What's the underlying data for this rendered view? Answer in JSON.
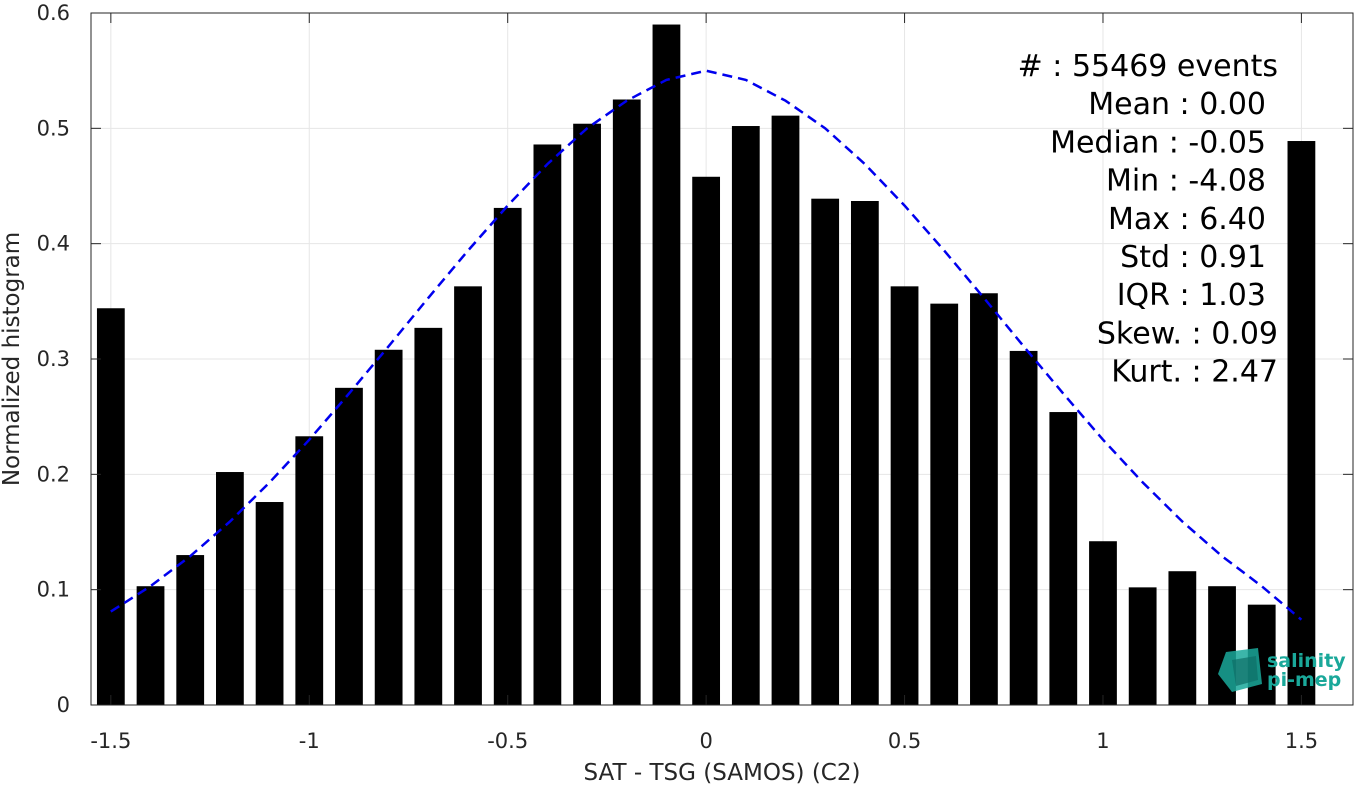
{
  "chart_data": {
    "type": "bar",
    "xlabel": "SAT - TSG (SAMOS) (C2)",
    "ylabel": "Normalized histogram",
    "xlim": [
      -1.55,
      1.63
    ],
    "ylim": [
      0,
      0.6
    ],
    "grid": true,
    "x_ticks": [
      -1.5,
      -1,
      -0.5,
      0,
      0.5,
      1,
      1.5
    ],
    "x_tick_labels": [
      "-1.5",
      "-1",
      "-0.5",
      "0",
      "0.5",
      "1",
      "1.5"
    ],
    "y_ticks": [
      0,
      0.1,
      0.2,
      0.3,
      0.4,
      0.5,
      0.6
    ],
    "y_tick_labels": [
      "0",
      "0.1",
      "0.2",
      "0.3",
      "0.4",
      "0.5",
      "0.6"
    ],
    "bar_width": 0.07,
    "bar_color": "#000000",
    "x": [
      -1.5,
      -1.4,
      -1.3,
      -1.2,
      -1.1,
      -1.0,
      -0.9,
      -0.8,
      -0.7,
      -0.6,
      -0.5,
      -0.4,
      -0.3,
      -0.2,
      -0.1,
      0.0,
      0.1,
      0.2,
      0.3,
      0.4,
      0.5,
      0.6,
      0.7,
      0.8,
      0.9,
      1.0,
      1.1,
      1.2,
      1.3,
      1.4,
      1.5
    ],
    "values": [
      0.344,
      0.103,
      0.13,
      0.202,
      0.176,
      0.233,
      0.275,
      0.308,
      0.327,
      0.363,
      0.431,
      0.486,
      0.504,
      0.525,
      0.59,
      0.458,
      0.502,
      0.511,
      0.439,
      0.437,
      0.363,
      0.348,
      0.357,
      0.307,
      0.254,
      0.142,
      0.102,
      0.116,
      0.103,
      0.087,
      0.489
    ],
    "fit_curve": {
      "style": "dashed",
      "color": "#0000ee",
      "x": [
        -1.5,
        -1.4,
        -1.3,
        -1.2,
        -1.1,
        -1.0,
        -0.9,
        -0.8,
        -0.7,
        -0.6,
        -0.5,
        -0.4,
        -0.3,
        -0.2,
        -0.1,
        0.0,
        0.1,
        0.2,
        0.3,
        0.4,
        0.5,
        0.6,
        0.7,
        0.8,
        0.9,
        1.0,
        1.1,
        1.2,
        1.3,
        1.4,
        1.5
      ],
      "y": [
        0.081,
        0.103,
        0.129,
        0.159,
        0.193,
        0.23,
        0.27,
        0.311,
        0.353,
        0.394,
        0.433,
        0.469,
        0.5,
        0.524,
        0.542,
        0.55,
        0.542,
        0.524,
        0.5,
        0.469,
        0.433,
        0.394,
        0.353,
        0.311,
        0.27,
        0.23,
        0.193,
        0.159,
        0.129,
        0.103,
        0.074
      ]
    },
    "stats_lines": [
      "#  : 55469 events",
      "Mean : 0.00",
      "Median : -0.05",
      "Min : -4.08",
      "Max : 6.40",
      "Std : 0.91",
      "IQR : 1.03",
      "Skew. : 0.09",
      "Kurt. : 2.47"
    ],
    "logo": [
      "salinity",
      "pi-mep"
    ]
  }
}
